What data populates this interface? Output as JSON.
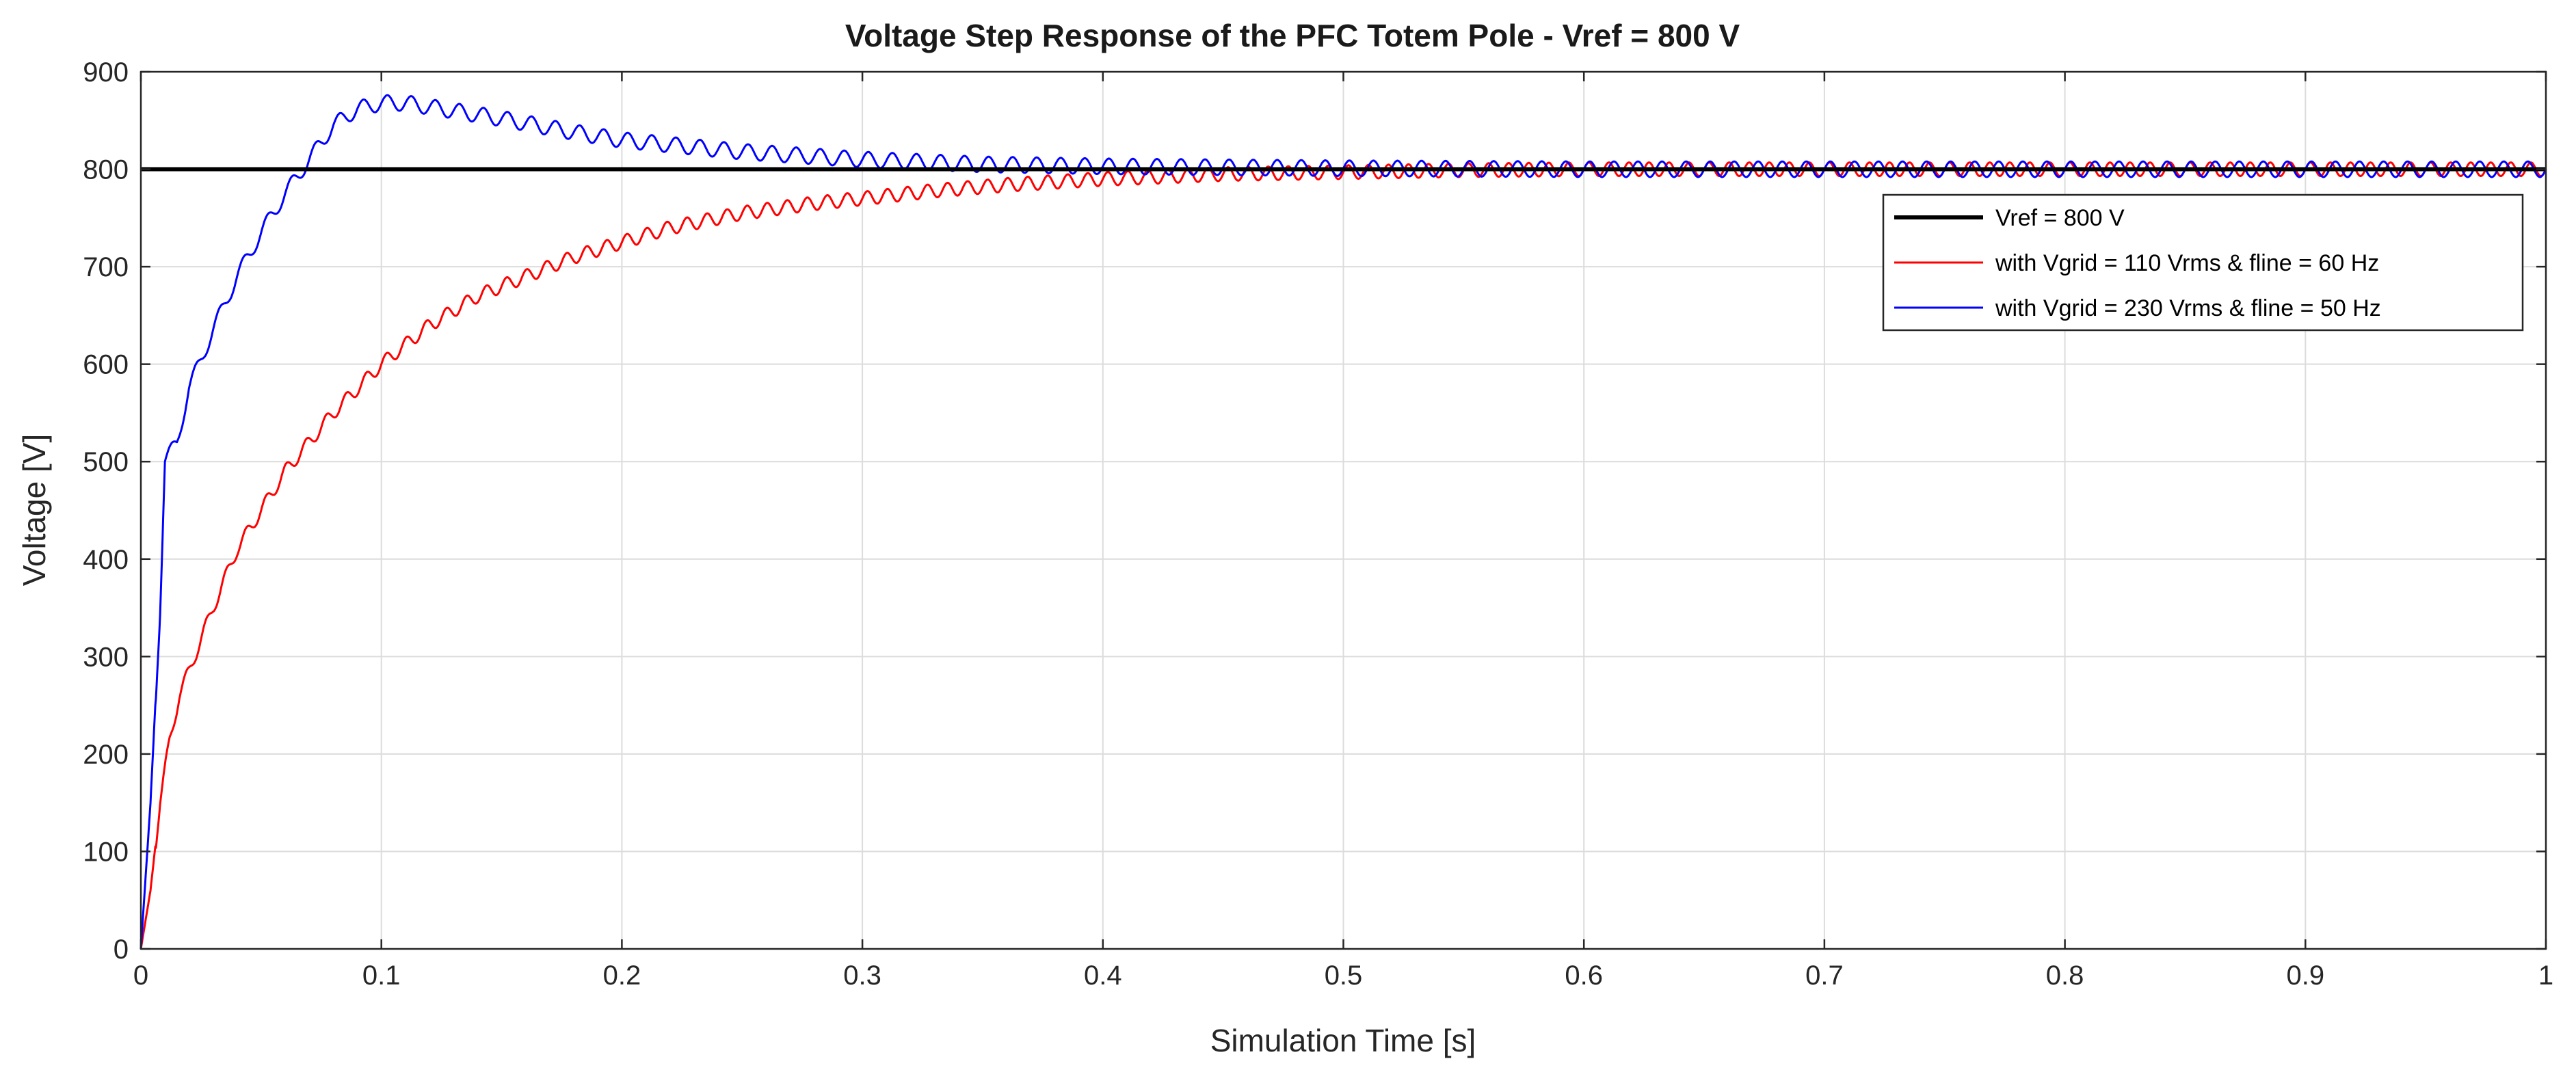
{
  "chart_data": {
    "type": "line",
    "title": "Voltage Step Response of the PFC Totem Pole - Vref = 800 V",
    "xlabel": "Simulation Time [s]",
    "ylabel": "Voltage [V]",
    "xlim": [
      0,
      1
    ],
    "ylim": [
      0,
      900
    ],
    "grid": true,
    "x_ticks": [
      0,
      0.1,
      0.2,
      0.3,
      0.4,
      0.5,
      0.6,
      0.7,
      0.8,
      0.9,
      1
    ],
    "x_tick_labels": [
      "0",
      "0.1",
      "0.2",
      "0.3",
      "0.4",
      "0.5",
      "0.6",
      "0.7",
      "0.8",
      "0.9",
      "1"
    ],
    "y_ticks": [
      0,
      100,
      200,
      300,
      400,
      500,
      600,
      700,
      800,
      900
    ],
    "y_tick_labels": [
      "0",
      "100",
      "200",
      "300",
      "400",
      "500",
      "600",
      "700",
      "800",
      "900"
    ],
    "legend_position": "top-right",
    "series": [
      {
        "name": "Vref = 800 V",
        "color": "#000000",
        "x": [
          0,
          1
        ],
        "y": [
          800,
          800
        ]
      },
      {
        "name": "with Vgrid = 110 Vrms & fline = 60 Hz",
        "color": "#ff0000",
        "x": [
          0,
          0.004,
          0.008,
          0.012,
          0.016,
          0.02,
          0.03,
          0.04,
          0.05,
          0.06,
          0.07,
          0.08,
          0.09,
          0.1,
          0.12,
          0.14,
          0.16,
          0.18,
          0.2,
          0.22,
          0.25,
          0.28,
          0.3,
          0.33,
          0.36,
          0.4,
          0.45,
          0.5,
          0.55,
          0.6,
          0.7,
          0.8,
          0.9,
          1.0
        ],
        "y": [
          0,
          60,
          150,
          215,
          260,
          285,
          350,
          410,
          450,
          490,
          520,
          550,
          575,
          600,
          640,
          670,
          690,
          710,
          725,
          740,
          755,
          765,
          770,
          778,
          784,
          790,
          795,
          797,
          799,
          800,
          800,
          800,
          800,
          800
        ]
      },
      {
        "name": "with Vgrid = 230 Vrms & fline = 50 Hz",
        "color": "#0000ff",
        "x": [
          0,
          0.004,
          0.008,
          0.01,
          0.015,
          0.02,
          0.03,
          0.04,
          0.05,
          0.06,
          0.07,
          0.08,
          0.09,
          0.1,
          0.11,
          0.13,
          0.15,
          0.18,
          0.2,
          0.25,
          0.3,
          0.35,
          0.4,
          0.45,
          0.5,
          0.6,
          0.7,
          0.8,
          0.9,
          1.0
        ],
        "y": [
          0,
          150,
          350,
          500,
          520,
          575,
          635,
          690,
          735,
          775,
          810,
          845,
          862,
          868,
          868,
          860,
          852,
          838,
          830,
          818,
          810,
          805,
          803,
          802,
          801,
          800,
          800,
          800,
          800,
          800
        ],
        "ripple": 8
      }
    ]
  }
}
